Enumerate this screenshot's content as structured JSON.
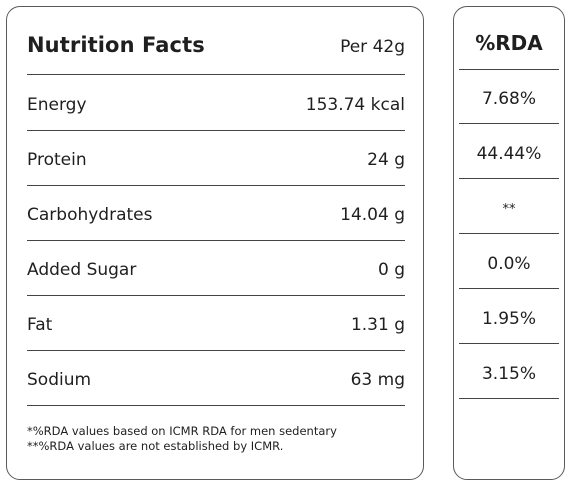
{
  "nutrition": {
    "title": "Nutrition Facts",
    "per": "Per 42g",
    "rows": [
      {
        "label": "Energy",
        "value": "153.74 kcal"
      },
      {
        "label": "Protein",
        "value": "24 g"
      },
      {
        "label": "Carbohydrates",
        "value": "14.04 g"
      },
      {
        "label": "Added Sugar",
        "value": "0 g"
      },
      {
        "label": "Fat",
        "value": "1.31 g"
      },
      {
        "label": "Sodium",
        "value": "63 mg"
      }
    ],
    "footnotes": [
      "*%RDA values based on ICMR RDA for men sedentary",
      "**%RDA values are not established by ICMR."
    ]
  },
  "rda": {
    "title": "%RDA",
    "values": [
      "7.68%",
      "44.44%",
      "**",
      "0.0%",
      "1.95%",
      "3.15%"
    ]
  }
}
